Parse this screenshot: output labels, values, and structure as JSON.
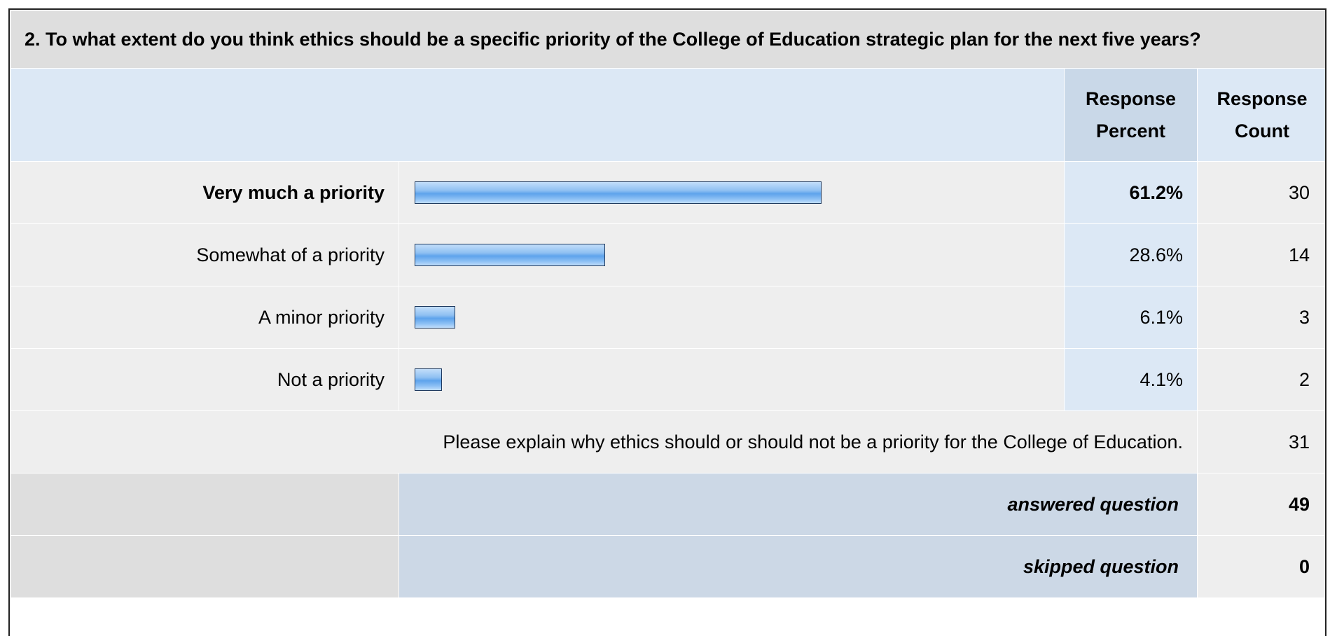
{
  "question": {
    "title": "2. To what extent do you think ethics should be a specific priority of the College of Education strategic plan for the next five years?"
  },
  "headers": {
    "response_percent": "Response Percent",
    "response_count": "Response Count"
  },
  "chart_data": {
    "type": "bar",
    "orientation": "horizontal",
    "categories": [
      "Very much a priority",
      "Somewhat of a priority",
      "A minor priority",
      "Not a priority"
    ],
    "values": [
      61.2,
      28.6,
      6.1,
      4.1
    ],
    "percent_labels": [
      "61.2%",
      "28.6%",
      "6.1%",
      "4.1%"
    ],
    "counts": [
      "30",
      "14",
      "3",
      "2"
    ],
    "xlim": [
      0,
      100
    ],
    "bar_color": "#7fb6f0",
    "highlight_index": 0
  },
  "explain": {
    "text": "Please explain why ethics should or should not be a priority for the College of Education.",
    "count": "31"
  },
  "summary": {
    "answered_label": "answered question",
    "answered_value": "49",
    "skipped_label": "skipped question",
    "skipped_value": "0"
  }
}
